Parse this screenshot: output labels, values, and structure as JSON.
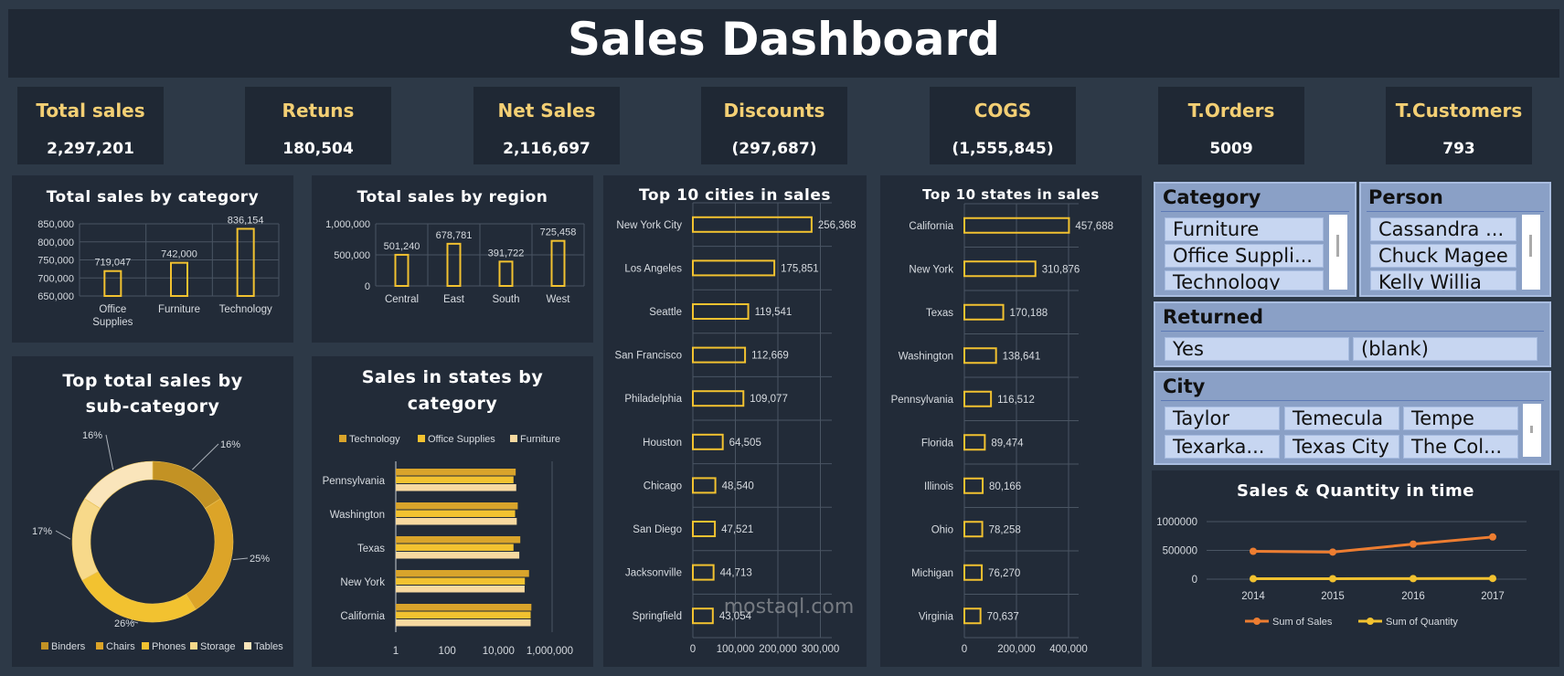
{
  "header": {
    "title": "Sales Dashboard"
  },
  "kpis": [
    {
      "label": "Total sales",
      "value": "2,297,201"
    },
    {
      "label": "Retuns",
      "value": "180,504"
    },
    {
      "label": "Net Sales",
      "value": "2,116,697"
    },
    {
      "label": "Discounts",
      "value": "(297,687)"
    },
    {
      "label": "COGS",
      "value": "(1,555,845)"
    },
    {
      "label": "T.Orders",
      "value": "5009"
    },
    {
      "label": "T.Customers",
      "value": "793"
    }
  ],
  "colors": {
    "gold": "#f2c230",
    "kpi_label": "#f3cf74",
    "orange": "#ed7d31",
    "panel": "#222b38",
    "page": "#2d3947"
  },
  "chart_data": [
    {
      "id": "category",
      "type": "bar",
      "title": "Total sales by category",
      "categories": [
        "Office Supplies",
        "Furniture",
        "Technology"
      ],
      "category_lines": [
        [
          "Office",
          "Supplies"
        ],
        [
          "Furniture"
        ],
        [
          "Technology"
        ]
      ],
      "values": [
        719047,
        742000,
        836154
      ],
      "value_labels": [
        "719,047",
        "742,000",
        "836,154"
      ],
      "ylim": [
        650000,
        850000
      ],
      "yticks": [
        "850,000",
        "800,000",
        "750,000",
        "700,000",
        "650,000"
      ]
    },
    {
      "id": "region",
      "type": "bar",
      "title": "Total sales by region",
      "categories": [
        "Central",
        "East",
        "South",
        "West"
      ],
      "values": [
        501240,
        678781,
        391722,
        725458
      ],
      "value_labels": [
        "501,240",
        "678,781",
        "391,722",
        "725,458"
      ],
      "ylim": [
        0,
        1000000
      ],
      "yticks": [
        "1,000,000",
        "500,000",
        "0"
      ]
    },
    {
      "id": "cities",
      "type": "bar",
      "title": "Top 10 cities in sales",
      "categories": [
        "New York City",
        "Los Angeles",
        "Seattle",
        "San Francisco",
        "Philadelphia",
        "Houston",
        "Chicago",
        "San Diego",
        "Jacksonville",
        "Springfield"
      ],
      "values": [
        256368,
        175851,
        119541,
        112669,
        109077,
        64505,
        48540,
        47521,
        44713,
        43054
      ],
      "value_labels": [
        "256,368",
        "175,851",
        "119,541",
        "112,669",
        "109,077",
        "64,505",
        "48,540",
        "47,521",
        "44,713",
        "43,054"
      ],
      "xlim": [
        0,
        300000
      ],
      "xticks": [
        "0",
        "100,000",
        "200,000",
        "300,000"
      ]
    },
    {
      "id": "states",
      "type": "bar",
      "title": "Top 10  states in sales",
      "categories": [
        "California",
        "New York",
        "Texas",
        "Washington",
        "Pennsylvania",
        "Florida",
        "Illinois",
        "Ohio",
        "Michigan",
        "Virginia"
      ],
      "values": [
        457688,
        310876,
        170188,
        138641,
        116512,
        89474,
        80166,
        78258,
        76270,
        70637
      ],
      "value_labels": [
        "457,688",
        "310,876",
        "170,188",
        "138,641",
        "116,512",
        "89,474",
        "80,166",
        "78,258",
        "76,270",
        "70,637"
      ],
      "xlim": [
        0,
        500000
      ],
      "xticks": [
        "0",
        "200,000",
        "400,000"
      ]
    },
    {
      "id": "subcategory",
      "type": "pie",
      "title_lines": [
        "Top total sales by",
        "sub-category"
      ],
      "categories": [
        "Binders",
        "Chairs",
        "Phones",
        "Storage",
        "Tables"
      ],
      "values": [
        16,
        25,
        26,
        17,
        16
      ],
      "value_labels": [
        "16%",
        "25%",
        "26%",
        "17%",
        "16%"
      ],
      "legend": "bottom"
    },
    {
      "id": "states_category",
      "type": "bar",
      "title_lines": [
        "Sales in states by",
        "category"
      ],
      "categories": [
        "Pennsylvania",
        "Washington",
        "Texas",
        "New York",
        "California"
      ],
      "series": [
        {
          "name": "Technology",
          "values": [
            40000,
            48000,
            60000,
            130000,
            160000
          ]
        },
        {
          "name": "Office Supplies",
          "values": [
            33000,
            38000,
            33000,
            90000,
            150000
          ]
        },
        {
          "name": "Furniture",
          "values": [
            42000,
            44000,
            55000,
            88000,
            150000
          ]
        }
      ],
      "xscale": "log",
      "xlim": [
        1,
        1000000
      ],
      "xticks": [
        "1",
        "100",
        "10,000",
        "1,000,000"
      ],
      "legend": "top"
    },
    {
      "id": "time",
      "type": "line",
      "title": "Sales & Quantity in time",
      "x": [
        "2014",
        "2015",
        "2016",
        "2017"
      ],
      "series": [
        {
          "name": "Sum of Sales",
          "values": [
            484247,
            470533,
            609206,
            733215
          ]
        },
        {
          "name": "Sum of Quantity",
          "values": [
            7581,
            7979,
            9837,
            12476
          ]
        }
      ],
      "ylim": [
        0,
        1000000
      ],
      "yticks": [
        "1000000",
        "500000",
        "0"
      ],
      "legend": "bottom"
    }
  ],
  "slicers": {
    "category": {
      "header": "Category",
      "items": [
        "Furniture",
        "Office Suppli...",
        "Technology"
      ]
    },
    "person": {
      "header": "Person",
      "items": [
        "Cassandra ...",
        "Chuck Magee",
        "Kelly Willia"
      ]
    },
    "returned": {
      "header": "Returned",
      "items": [
        "Yes",
        "(blank)"
      ]
    },
    "city": {
      "header": "City",
      "items": [
        "Taylor",
        "Temecula",
        "Tempe",
        "Texarka...",
        "Texas City",
        "The Col..."
      ]
    }
  },
  "watermark": {
    "text": "mostaql.com"
  }
}
